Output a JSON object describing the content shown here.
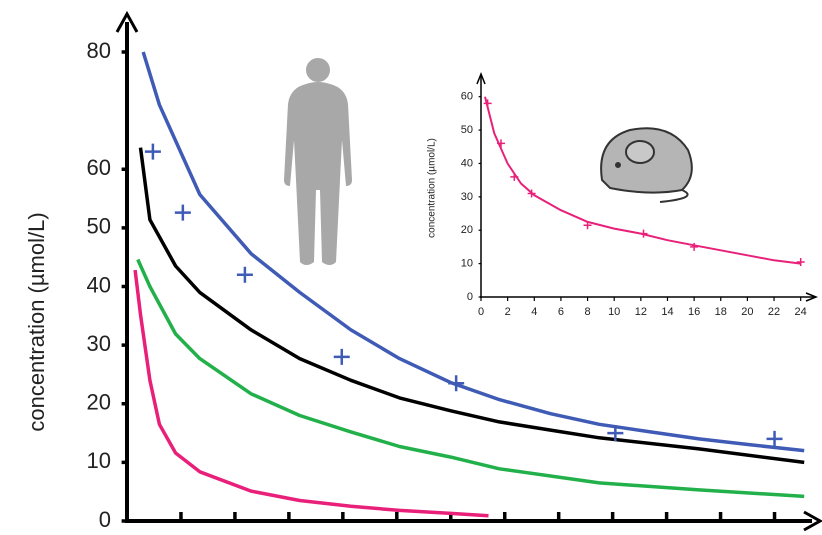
{
  "chart_data": [
    {
      "type": "line",
      "y_label": "concentration  (µmol/L)",
      "xlim": [
        0,
        25.5
      ],
      "ylim": [
        0,
        80
      ],
      "xticks": [
        2,
        4,
        6,
        8,
        10,
        12,
        14,
        16,
        18,
        20,
        22,
        24
      ],
      "yticks": [
        0,
        10,
        20,
        30,
        40,
        50,
        60,
        80
      ],
      "series": [
        {
          "color": "#3f5bb5",
          "style": "line",
          "x": [
            0.6,
            1.2,
            2.7,
            4.6,
            6.4,
            8.3,
            10.1,
            12,
            13.8,
            15.7,
            17.5,
            19.4,
            21.2,
            23.1,
            25.1
          ],
          "values": [
            80,
            71,
            55.7,
            45.6,
            39,
            32.6,
            27.7,
            23.6,
            20.7,
            18.3,
            16.5,
            15.2,
            14,
            13,
            12
          ]
        },
        {
          "color": "#000000",
          "style": "line",
          "x": [
            0.5,
            0.85,
            1.8,
            2.7,
            4.6,
            6.4,
            8.3,
            10.1,
            12,
            13.8,
            15.7,
            17.5,
            21.2,
            25.1
          ],
          "values": [
            63.7,
            51.4,
            43.5,
            39,
            32.6,
            27.7,
            24,
            21,
            18.8,
            16.9,
            15.5,
            14.2,
            12.3,
            10
          ]
        },
        {
          "color": "#22b04a",
          "style": "line",
          "x": [
            0.4,
            0.85,
            1.8,
            2.7,
            4.6,
            6.4,
            8.3,
            10.1,
            12,
            13.8,
            17.5,
            21.2,
            25.1
          ],
          "values": [
            44.6,
            40,
            31.9,
            27.7,
            21.7,
            18,
            15.2,
            12.7,
            10.9,
            8.9,
            6.5,
            5.3,
            4.2
          ]
        },
        {
          "color": "#e8207a",
          "style": "line",
          "x": [
            0.3,
            0.5,
            0.85,
            1.2,
            1.8,
            2.7,
            4.6,
            6.4,
            8.3,
            10.1,
            12,
            13.4
          ],
          "values": [
            42.8,
            35.2,
            24,
            16.5,
            11.6,
            8.4,
            5.1,
            3.5,
            2.5,
            1.8,
            1.3,
            0.9
          ]
        },
        {
          "color": "#3f5bb5",
          "style": "plus",
          "x": [
            0.96,
            2.07,
            4.37,
            7.96,
            12.2,
            18.1,
            24
          ],
          "values": [
            63,
            52.6,
            42,
            28,
            23.5,
            15,
            14
          ]
        }
      ]
    },
    {
      "type": "line",
      "y_label": "concentration  (µmol/L)",
      "xlim": [
        0,
        25
      ],
      "ylim": [
        0,
        65
      ],
      "xticks": [
        0,
        2,
        4,
        6,
        8,
        10,
        12,
        14,
        16,
        18,
        20,
        22,
        24
      ],
      "yticks": [
        0,
        10,
        20,
        30,
        40,
        50,
        60
      ],
      "series": [
        {
          "color": "#e8207a",
          "style": "line",
          "x": [
            0.3,
            1,
            2,
            3,
            4,
            6,
            8,
            10,
            12,
            14,
            16,
            18,
            20,
            22,
            24
          ],
          "values": [
            60,
            49,
            40,
            34,
            30.5,
            26,
            22.5,
            20.5,
            19,
            17,
            15.5,
            14,
            12.5,
            11,
            10
          ]
        },
        {
          "color": "#e8207a",
          "style": "plus",
          "x": [
            0.5,
            1.5,
            2.5,
            3.8,
            8,
            12.2,
            16,
            24
          ],
          "values": [
            58,
            46,
            36,
            31,
            21.5,
            19,
            15,
            10.5
          ]
        }
      ]
    }
  ]
}
